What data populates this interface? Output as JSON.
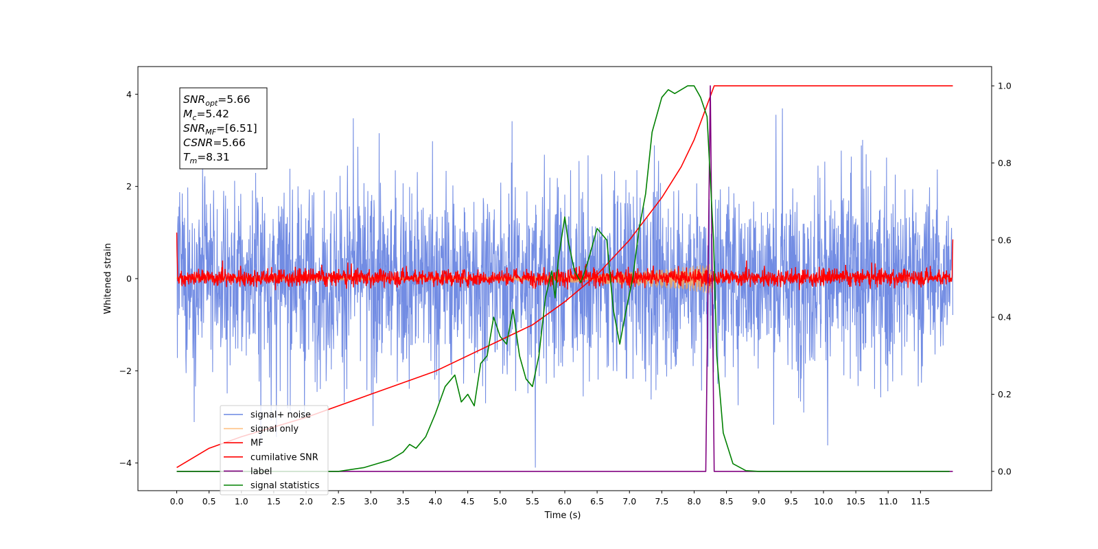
{
  "chart_data": {
    "type": "line",
    "xlabel": "Time (s)",
    "ylabel": "Whitened strain",
    "xlim": [
      -0.6,
      12.6
    ],
    "ylim": [
      -4.6,
      4.6
    ],
    "y2lim": [
      -0.05,
      1.05
    ],
    "x_ticks": [
      "0.0",
      "0.5",
      "1.0",
      "1.5",
      "2.0",
      "2.5",
      "3.0",
      "3.5",
      "4.0",
      "4.5",
      "5.0",
      "5.5",
      "6.0",
      "6.5",
      "7.0",
      "7.5",
      "8.0",
      "8.5",
      "9.0",
      "9.5",
      "10.0",
      "10.5",
      "11.0",
      "11.5"
    ],
    "y_ticks": [
      "4",
      "2",
      "0",
      "−2",
      "−4"
    ],
    "y2_ticks": [
      "1.0",
      "0.8",
      "0.6",
      "0.4",
      "0.2",
      "0.0"
    ],
    "grid": false,
    "legend_position": "lower-left",
    "stats_box": [
      {
        "sym": "SNR",
        "sub": "opt",
        "value": "=5.66"
      },
      {
        "sym": "M",
        "sub": "c",
        "value": "=5.42"
      },
      {
        "sym": "SNR",
        "sub": "MF",
        "value": "=[6.51]"
      },
      {
        "sym": "CSNR",
        "sub": "",
        "value": "=5.66"
      },
      {
        "sym": "T",
        "sub": "m",
        "value": "=8.31"
      }
    ],
    "series": [
      {
        "name": "signal+ noise",
        "color": "#6a86e2",
        "axis": "left",
        "description": "noise-dominated strain, amplitude about ±2.5 with peaks near ±4.1",
        "x_range": [
          0.0,
          12.0
        ]
      },
      {
        "name": "signal only",
        "color": "#ffa64d",
        "axis": "left",
        "description": "chirp waveform, small amplitude rising to about 0.35 near 8.2 s",
        "x_range": [
          0.0,
          12.0
        ]
      },
      {
        "name": "MF",
        "color": "#ff0000",
        "axis": "left",
        "description": "matched filter output, mostly between -0.2 and 0.3, ends near 1.0 and 0.85",
        "x_range": [
          0.0,
          12.0
        ]
      },
      {
        "name": "cumilative SNR",
        "color": "#ff0000",
        "axis": "right",
        "x": [
          0.0,
          0.5,
          1.0,
          2.0,
          3.0,
          4.0,
          5.0,
          5.5,
          6.0,
          6.5,
          7.0,
          7.5,
          7.8,
          8.0,
          8.2,
          8.31,
          12.0
        ],
        "y": [
          0.01,
          0.06,
          0.09,
          0.14,
          0.2,
          0.26,
          0.34,
          0.38,
          0.44,
          0.51,
          0.6,
          0.71,
          0.79,
          0.86,
          0.95,
          1.0,
          1.0
        ]
      },
      {
        "name": "label",
        "color": "#800080",
        "axis": "right",
        "x": [
          0.0,
          8.18,
          8.25,
          8.31,
          12.0
        ],
        "y": [
          0.0,
          0.0,
          1.0,
          0.0,
          0.0
        ]
      },
      {
        "name": "signal statistics",
        "color": "#008000",
        "axis": "right",
        "x": [
          0.0,
          1.0,
          2.0,
          2.5,
          2.9,
          3.1,
          3.3,
          3.5,
          3.6,
          3.7,
          3.85,
          4.0,
          4.15,
          4.3,
          4.4,
          4.5,
          4.6,
          4.7,
          4.8,
          4.9,
          5.0,
          5.1,
          5.2,
          5.3,
          5.4,
          5.5,
          5.6,
          5.7,
          5.8,
          5.85,
          5.9,
          6.0,
          6.05,
          6.15,
          6.25,
          6.35,
          6.5,
          6.65,
          6.75,
          6.85,
          6.95,
          7.05,
          7.15,
          7.25,
          7.35,
          7.5,
          7.6,
          7.7,
          7.8,
          7.9,
          8.0,
          8.1,
          8.2,
          8.3,
          8.35,
          8.45,
          8.6,
          8.8,
          9.0,
          10.0,
          11.0,
          11.95
        ],
        "y": [
          0.0,
          0.0,
          0.0,
          0.0,
          0.01,
          0.02,
          0.03,
          0.05,
          0.07,
          0.06,
          0.09,
          0.15,
          0.22,
          0.25,
          0.18,
          0.2,
          0.17,
          0.28,
          0.3,
          0.4,
          0.35,
          0.33,
          0.42,
          0.3,
          0.24,
          0.22,
          0.3,
          0.45,
          0.52,
          0.45,
          0.55,
          0.66,
          0.6,
          0.52,
          0.49,
          0.54,
          0.63,
          0.6,
          0.42,
          0.33,
          0.42,
          0.5,
          0.63,
          0.72,
          0.88,
          0.97,
          0.99,
          0.98,
          0.99,
          1.0,
          1.0,
          0.97,
          0.92,
          0.6,
          0.3,
          0.1,
          0.02,
          0.002,
          0.0,
          0.0,
          0.0,
          0.0
        ]
      }
    ]
  }
}
